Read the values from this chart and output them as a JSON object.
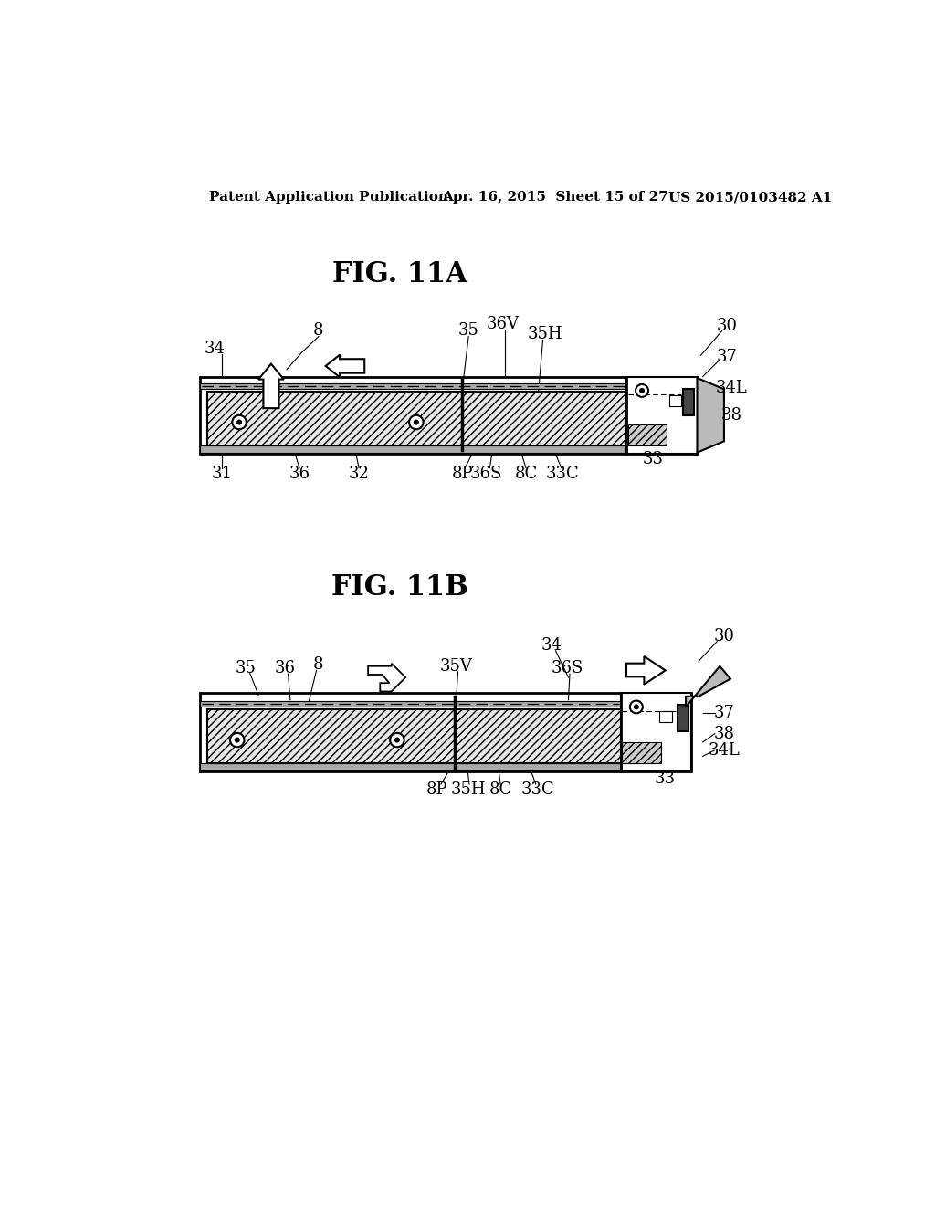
{
  "background_color": "#ffffff",
  "header_left": "Patent Application Publication",
  "header_center": "Apr. 16, 2015  Sheet 15 of 27",
  "header_right": "US 2015/0103482 A1",
  "fig_title_A": "FIG. 11A",
  "fig_title_B": "FIG. 11B"
}
